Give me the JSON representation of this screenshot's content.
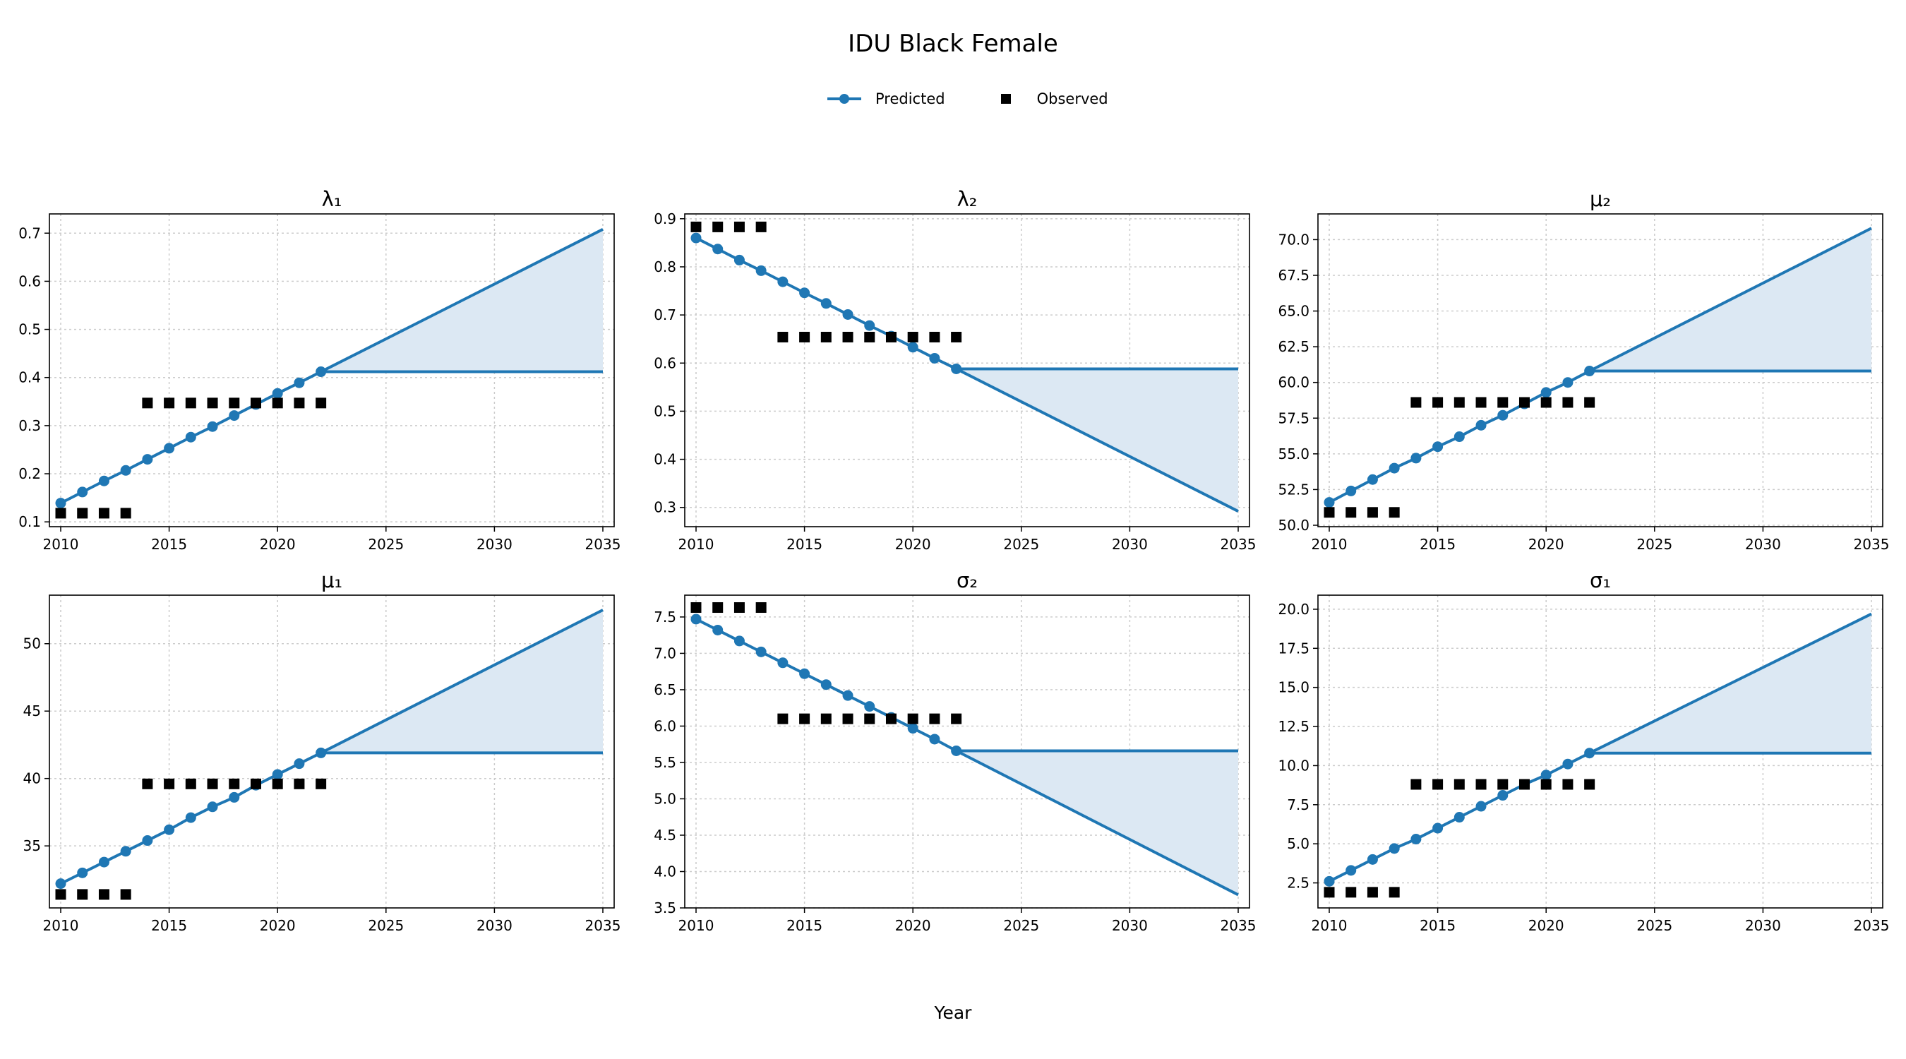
{
  "figure": {
    "title": "IDU Black Female",
    "xlabel": "Year",
    "legend": [
      {
        "label": "Predicted",
        "marker": "line-circle",
        "color": "#1f77b4"
      },
      {
        "label": "Observed",
        "marker": "square",
        "color": "#000000"
      }
    ],
    "colors": {
      "predicted": "#1f77b4",
      "band": "#dce8f3",
      "observed": "#000000",
      "grid": "#cccccc"
    }
  },
  "chart_data": [
    {
      "type": "line",
      "title": "λ₁",
      "xlim": [
        2010,
        2035
      ],
      "ylim": [
        0.09,
        0.74
      ],
      "xticks": [
        2010,
        2015,
        2020,
        2025,
        2030,
        2035
      ],
      "yticks": [
        0.1,
        0.2,
        0.3,
        0.4,
        0.5,
        0.6,
        0.7
      ],
      "ytick_labels": [
        "0.1",
        "0.2",
        "0.3",
        "0.4",
        "0.5",
        "0.6",
        "0.7"
      ],
      "grid": true,
      "predicted": {
        "x": [
          2010,
          2011,
          2012,
          2013,
          2014,
          2015,
          2016,
          2017,
          2018,
          2019,
          2020,
          2021,
          2022
        ],
        "y": [
          0.139,
          0.162,
          0.185,
          0.207,
          0.23,
          0.253,
          0.276,
          0.298,
          0.321,
          0.344,
          0.367,
          0.389,
          0.412
        ]
      },
      "projection": {
        "x": [
          2022,
          2035
        ],
        "upper": [
          0.412,
          0.708
        ],
        "lower": [
          0.412,
          0.412
        ]
      },
      "observed": {
        "x": [
          2010,
          2011,
          2012,
          2013,
          2014,
          2015,
          2016,
          2017,
          2018,
          2019,
          2020,
          2021,
          2022
        ],
        "y": [
          0.118,
          0.118,
          0.118,
          0.118,
          0.347,
          0.347,
          0.347,
          0.347,
          0.347,
          0.347,
          0.347,
          0.347,
          0.347
        ]
      }
    },
    {
      "type": "line",
      "title": "λ₂",
      "xlim": [
        2010,
        2035
      ],
      "ylim": [
        0.26,
        0.91
      ],
      "xticks": [
        2010,
        2015,
        2020,
        2025,
        2030,
        2035
      ],
      "yticks": [
        0.3,
        0.4,
        0.5,
        0.6,
        0.7,
        0.8,
        0.9
      ],
      "ytick_labels": [
        "0.3",
        "0.4",
        "0.5",
        "0.6",
        "0.7",
        "0.8",
        "0.9"
      ],
      "grid": true,
      "predicted": {
        "x": [
          2010,
          2011,
          2012,
          2013,
          2014,
          2015,
          2016,
          2017,
          2018,
          2019,
          2020,
          2021,
          2022
        ],
        "y": [
          0.86,
          0.837,
          0.814,
          0.792,
          0.769,
          0.746,
          0.724,
          0.701,
          0.678,
          0.656,
          0.633,
          0.61,
          0.588
        ]
      },
      "projection": {
        "x": [
          2022,
          2035
        ],
        "upper": [
          0.588,
          0.588
        ],
        "lower": [
          0.588,
          0.292
        ]
      },
      "observed": {
        "x": [
          2010,
          2011,
          2012,
          2013,
          2014,
          2015,
          2016,
          2017,
          2018,
          2019,
          2020,
          2021,
          2022
        ],
        "y": [
          0.883,
          0.883,
          0.883,
          0.883,
          0.654,
          0.654,
          0.654,
          0.654,
          0.654,
          0.654,
          0.654,
          0.654,
          0.654
        ]
      }
    },
    {
      "type": "line",
      "title": "μ₂",
      "xlim": [
        2010,
        2035
      ],
      "ylim": [
        49.9,
        71.8
      ],
      "xticks": [
        2010,
        2015,
        2020,
        2025,
        2030,
        2035
      ],
      "yticks": [
        50,
        52.5,
        55,
        57.5,
        60,
        62.5,
        65,
        67.5,
        70
      ],
      "ytick_labels": [
        "50.0",
        "52.5",
        "55.0",
        "57.5",
        "60.0",
        "62.5",
        "65.0",
        "67.5",
        "70.0"
      ],
      "grid": true,
      "predicted": {
        "x": [
          2010,
          2011,
          2012,
          2013,
          2014,
          2015,
          2016,
          2017,
          2018,
          2019,
          2020,
          2021,
          2022
        ],
        "y": [
          51.6,
          52.4,
          53.2,
          54.0,
          54.7,
          55.5,
          56.2,
          57.0,
          57.7,
          58.5,
          59.3,
          60.0,
          60.8
        ]
      },
      "projection": {
        "x": [
          2022,
          2035
        ],
        "upper": [
          60.8,
          70.8
        ],
        "lower": [
          60.8,
          60.8
        ]
      },
      "observed": {
        "x": [
          2010,
          2011,
          2012,
          2013,
          2014,
          2015,
          2016,
          2017,
          2018,
          2019,
          2020,
          2021,
          2022
        ],
        "y": [
          50.9,
          50.9,
          50.9,
          50.9,
          58.6,
          58.6,
          58.6,
          58.6,
          58.6,
          58.6,
          58.6,
          58.6,
          58.6
        ]
      }
    },
    {
      "type": "line",
      "title": "μ₁",
      "xlim": [
        2010,
        2035
      ],
      "ylim": [
        30.4,
        53.6
      ],
      "xticks": [
        2010,
        2015,
        2020,
        2025,
        2030,
        2035
      ],
      "yticks": [
        35,
        40,
        45,
        50
      ],
      "ytick_labels": [
        "35",
        "40",
        "45",
        "50"
      ],
      "grid": true,
      "predicted": {
        "x": [
          2010,
          2011,
          2012,
          2013,
          2014,
          2015,
          2016,
          2017,
          2018,
          2019,
          2020,
          2021,
          2022
        ],
        "y": [
          32.2,
          33.0,
          33.8,
          34.6,
          35.4,
          36.2,
          37.1,
          37.9,
          38.6,
          39.5,
          40.3,
          41.1,
          41.9
        ]
      },
      "projection": {
        "x": [
          2022,
          2035
        ],
        "upper": [
          41.9,
          52.5
        ],
        "lower": [
          41.9,
          41.9
        ]
      },
      "observed": {
        "x": [
          2010,
          2011,
          2012,
          2013,
          2014,
          2015,
          2016,
          2017,
          2018,
          2019,
          2020,
          2021,
          2022
        ],
        "y": [
          31.4,
          31.4,
          31.4,
          31.4,
          39.6,
          39.6,
          39.6,
          39.6,
          39.6,
          39.6,
          39.6,
          39.6,
          39.6
        ]
      }
    },
    {
      "type": "line",
      "title": "σ₂",
      "xlim": [
        2010,
        2035
      ],
      "ylim": [
        3.5,
        7.8
      ],
      "xticks": [
        2010,
        2015,
        2020,
        2025,
        2030,
        2035
      ],
      "yticks": [
        3.5,
        4.0,
        4.5,
        5.0,
        5.5,
        6.0,
        6.5,
        7.0,
        7.5
      ],
      "ytick_labels": [
        "3.5",
        "4.0",
        "4.5",
        "5.0",
        "5.5",
        "6.0",
        "6.5",
        "7.0",
        "7.5"
      ],
      "grid": true,
      "predicted": {
        "x": [
          2010,
          2011,
          2012,
          2013,
          2014,
          2015,
          2016,
          2017,
          2018,
          2019,
          2020,
          2021,
          2022
        ],
        "y": [
          7.47,
          7.32,
          7.17,
          7.02,
          6.87,
          6.72,
          6.57,
          6.42,
          6.27,
          6.12,
          5.97,
          5.82,
          5.66
        ]
      },
      "projection": {
        "x": [
          2022,
          2035
        ],
        "upper": [
          5.66,
          5.66
        ],
        "lower": [
          5.66,
          3.68
        ]
      },
      "observed": {
        "x": [
          2010,
          2011,
          2012,
          2013,
          2014,
          2015,
          2016,
          2017,
          2018,
          2019,
          2020,
          2021,
          2022
        ],
        "y": [
          7.63,
          7.63,
          7.63,
          7.63,
          6.1,
          6.1,
          6.1,
          6.1,
          6.1,
          6.1,
          6.1,
          6.1,
          6.1
        ]
      }
    },
    {
      "type": "line",
      "title": "σ₁",
      "xlim": [
        2010,
        2035
      ],
      "ylim": [
        0.9,
        20.9
      ],
      "xticks": [
        2010,
        2015,
        2020,
        2025,
        2030,
        2035
      ],
      "yticks": [
        2.5,
        5,
        7.5,
        10,
        12.5,
        15,
        17.5,
        20
      ],
      "ytick_labels": [
        "2.5",
        "5.0",
        "7.5",
        "10.0",
        "12.5",
        "15.0",
        "17.5",
        "20.0"
      ],
      "grid": true,
      "predicted": {
        "x": [
          2010,
          2011,
          2012,
          2013,
          2014,
          2015,
          2016,
          2017,
          2018,
          2019,
          2020,
          2021,
          2022
        ],
        "y": [
          2.6,
          3.3,
          4.0,
          4.7,
          5.3,
          6.0,
          6.7,
          7.4,
          8.1,
          8.8,
          9.4,
          10.1,
          10.8
        ]
      },
      "projection": {
        "x": [
          2022,
          2035
        ],
        "upper": [
          10.8,
          19.7
        ],
        "lower": [
          10.8,
          10.8
        ]
      },
      "observed": {
        "x": [
          2010,
          2011,
          2012,
          2013,
          2014,
          2015,
          2016,
          2017,
          2018,
          2019,
          2020,
          2021,
          2022
        ],
        "y": [
          1.9,
          1.9,
          1.9,
          1.9,
          8.8,
          8.8,
          8.8,
          8.8,
          8.8,
          8.8,
          8.8,
          8.8,
          8.8
        ]
      }
    }
  ]
}
